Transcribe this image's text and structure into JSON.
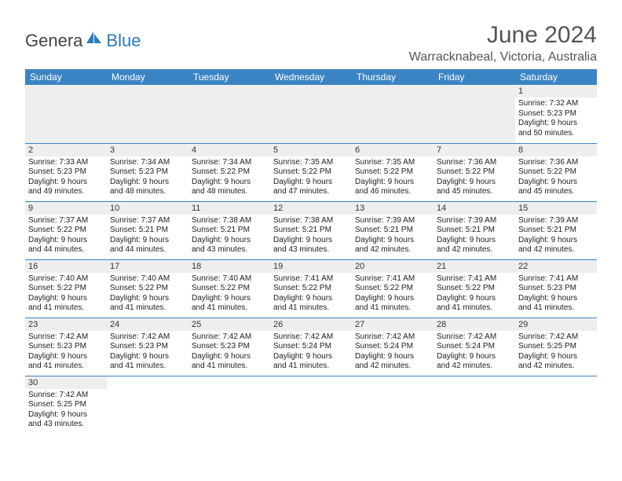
{
  "logo": {
    "text1": "Genera",
    "text2": "Blue",
    "icon_color": "#2b7bba"
  },
  "header": {
    "title": "June 2024",
    "location": "Warracknabeal, Victoria, Australia"
  },
  "colors": {
    "header_bg": "#3b84c4",
    "header_text": "#ffffff",
    "day_num_bg": "#eeeeee",
    "border": "#3b84c4"
  },
  "weekdays": [
    "Sunday",
    "Monday",
    "Tuesday",
    "Wednesday",
    "Thursday",
    "Friday",
    "Saturday"
  ],
  "weeks": [
    [
      null,
      null,
      null,
      null,
      null,
      null,
      {
        "n": "1",
        "sunrise": "Sunrise: 7:32 AM",
        "sunset": "Sunset: 5:23 PM",
        "daylight1": "Daylight: 9 hours",
        "daylight2": "and 50 minutes."
      }
    ],
    [
      {
        "n": "2",
        "sunrise": "Sunrise: 7:33 AM",
        "sunset": "Sunset: 5:23 PM",
        "daylight1": "Daylight: 9 hours",
        "daylight2": "and 49 minutes."
      },
      {
        "n": "3",
        "sunrise": "Sunrise: 7:34 AM",
        "sunset": "Sunset: 5:23 PM",
        "daylight1": "Daylight: 9 hours",
        "daylight2": "and 48 minutes."
      },
      {
        "n": "4",
        "sunrise": "Sunrise: 7:34 AM",
        "sunset": "Sunset: 5:22 PM",
        "daylight1": "Daylight: 9 hours",
        "daylight2": "and 48 minutes."
      },
      {
        "n": "5",
        "sunrise": "Sunrise: 7:35 AM",
        "sunset": "Sunset: 5:22 PM",
        "daylight1": "Daylight: 9 hours",
        "daylight2": "and 47 minutes."
      },
      {
        "n": "6",
        "sunrise": "Sunrise: 7:35 AM",
        "sunset": "Sunset: 5:22 PM",
        "daylight1": "Daylight: 9 hours",
        "daylight2": "and 46 minutes."
      },
      {
        "n": "7",
        "sunrise": "Sunrise: 7:36 AM",
        "sunset": "Sunset: 5:22 PM",
        "daylight1": "Daylight: 9 hours",
        "daylight2": "and 45 minutes."
      },
      {
        "n": "8",
        "sunrise": "Sunrise: 7:36 AM",
        "sunset": "Sunset: 5:22 PM",
        "daylight1": "Daylight: 9 hours",
        "daylight2": "and 45 minutes."
      }
    ],
    [
      {
        "n": "9",
        "sunrise": "Sunrise: 7:37 AM",
        "sunset": "Sunset: 5:22 PM",
        "daylight1": "Daylight: 9 hours",
        "daylight2": "and 44 minutes."
      },
      {
        "n": "10",
        "sunrise": "Sunrise: 7:37 AM",
        "sunset": "Sunset: 5:21 PM",
        "daylight1": "Daylight: 9 hours",
        "daylight2": "and 44 minutes."
      },
      {
        "n": "11",
        "sunrise": "Sunrise: 7:38 AM",
        "sunset": "Sunset: 5:21 PM",
        "daylight1": "Daylight: 9 hours",
        "daylight2": "and 43 minutes."
      },
      {
        "n": "12",
        "sunrise": "Sunrise: 7:38 AM",
        "sunset": "Sunset: 5:21 PM",
        "daylight1": "Daylight: 9 hours",
        "daylight2": "and 43 minutes."
      },
      {
        "n": "13",
        "sunrise": "Sunrise: 7:39 AM",
        "sunset": "Sunset: 5:21 PM",
        "daylight1": "Daylight: 9 hours",
        "daylight2": "and 42 minutes."
      },
      {
        "n": "14",
        "sunrise": "Sunrise: 7:39 AM",
        "sunset": "Sunset: 5:21 PM",
        "daylight1": "Daylight: 9 hours",
        "daylight2": "and 42 minutes."
      },
      {
        "n": "15",
        "sunrise": "Sunrise: 7:39 AM",
        "sunset": "Sunset: 5:21 PM",
        "daylight1": "Daylight: 9 hours",
        "daylight2": "and 42 minutes."
      }
    ],
    [
      {
        "n": "16",
        "sunrise": "Sunrise: 7:40 AM",
        "sunset": "Sunset: 5:22 PM",
        "daylight1": "Daylight: 9 hours",
        "daylight2": "and 41 minutes."
      },
      {
        "n": "17",
        "sunrise": "Sunrise: 7:40 AM",
        "sunset": "Sunset: 5:22 PM",
        "daylight1": "Daylight: 9 hours",
        "daylight2": "and 41 minutes."
      },
      {
        "n": "18",
        "sunrise": "Sunrise: 7:40 AM",
        "sunset": "Sunset: 5:22 PM",
        "daylight1": "Daylight: 9 hours",
        "daylight2": "and 41 minutes."
      },
      {
        "n": "19",
        "sunrise": "Sunrise: 7:41 AM",
        "sunset": "Sunset: 5:22 PM",
        "daylight1": "Daylight: 9 hours",
        "daylight2": "and 41 minutes."
      },
      {
        "n": "20",
        "sunrise": "Sunrise: 7:41 AM",
        "sunset": "Sunset: 5:22 PM",
        "daylight1": "Daylight: 9 hours",
        "daylight2": "and 41 minutes."
      },
      {
        "n": "21",
        "sunrise": "Sunrise: 7:41 AM",
        "sunset": "Sunset: 5:22 PM",
        "daylight1": "Daylight: 9 hours",
        "daylight2": "and 41 minutes."
      },
      {
        "n": "22",
        "sunrise": "Sunrise: 7:41 AM",
        "sunset": "Sunset: 5:23 PM",
        "daylight1": "Daylight: 9 hours",
        "daylight2": "and 41 minutes."
      }
    ],
    [
      {
        "n": "23",
        "sunrise": "Sunrise: 7:42 AM",
        "sunset": "Sunset: 5:23 PM",
        "daylight1": "Daylight: 9 hours",
        "daylight2": "and 41 minutes."
      },
      {
        "n": "24",
        "sunrise": "Sunrise: 7:42 AM",
        "sunset": "Sunset: 5:23 PM",
        "daylight1": "Daylight: 9 hours",
        "daylight2": "and 41 minutes."
      },
      {
        "n": "25",
        "sunrise": "Sunrise: 7:42 AM",
        "sunset": "Sunset: 5:23 PM",
        "daylight1": "Daylight: 9 hours",
        "daylight2": "and 41 minutes."
      },
      {
        "n": "26",
        "sunrise": "Sunrise: 7:42 AM",
        "sunset": "Sunset: 5:24 PM",
        "daylight1": "Daylight: 9 hours",
        "daylight2": "and 41 minutes."
      },
      {
        "n": "27",
        "sunrise": "Sunrise: 7:42 AM",
        "sunset": "Sunset: 5:24 PM",
        "daylight1": "Daylight: 9 hours",
        "daylight2": "and 42 minutes."
      },
      {
        "n": "28",
        "sunrise": "Sunrise: 7:42 AM",
        "sunset": "Sunset: 5:24 PM",
        "daylight1": "Daylight: 9 hours",
        "daylight2": "and 42 minutes."
      },
      {
        "n": "29",
        "sunrise": "Sunrise: 7:42 AM",
        "sunset": "Sunset: 5:25 PM",
        "daylight1": "Daylight: 9 hours",
        "daylight2": "and 42 minutes."
      }
    ],
    [
      {
        "n": "30",
        "sunrise": "Sunrise: 7:42 AM",
        "sunset": "Sunset: 5:25 PM",
        "daylight1": "Daylight: 9 hours",
        "daylight2": "and 43 minutes."
      },
      null,
      null,
      null,
      null,
      null,
      null
    ]
  ]
}
